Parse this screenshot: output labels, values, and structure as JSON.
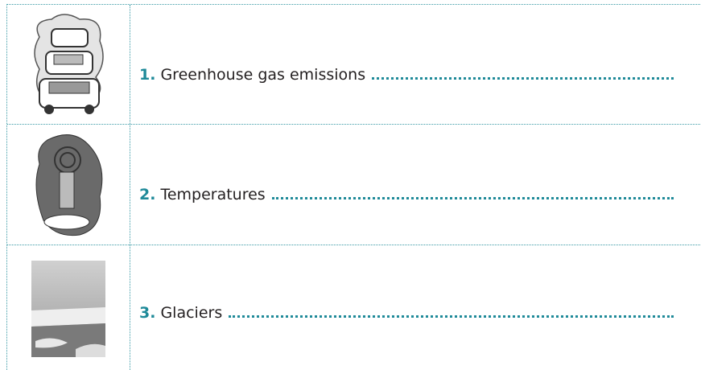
{
  "rows": [
    {
      "number": "1.",
      "text": "Greenhouse gas emissions"
    },
    {
      "number": "2.",
      "text": "Temperatures"
    },
    {
      "number": "3.",
      "text": "Glaciers"
    }
  ]
}
